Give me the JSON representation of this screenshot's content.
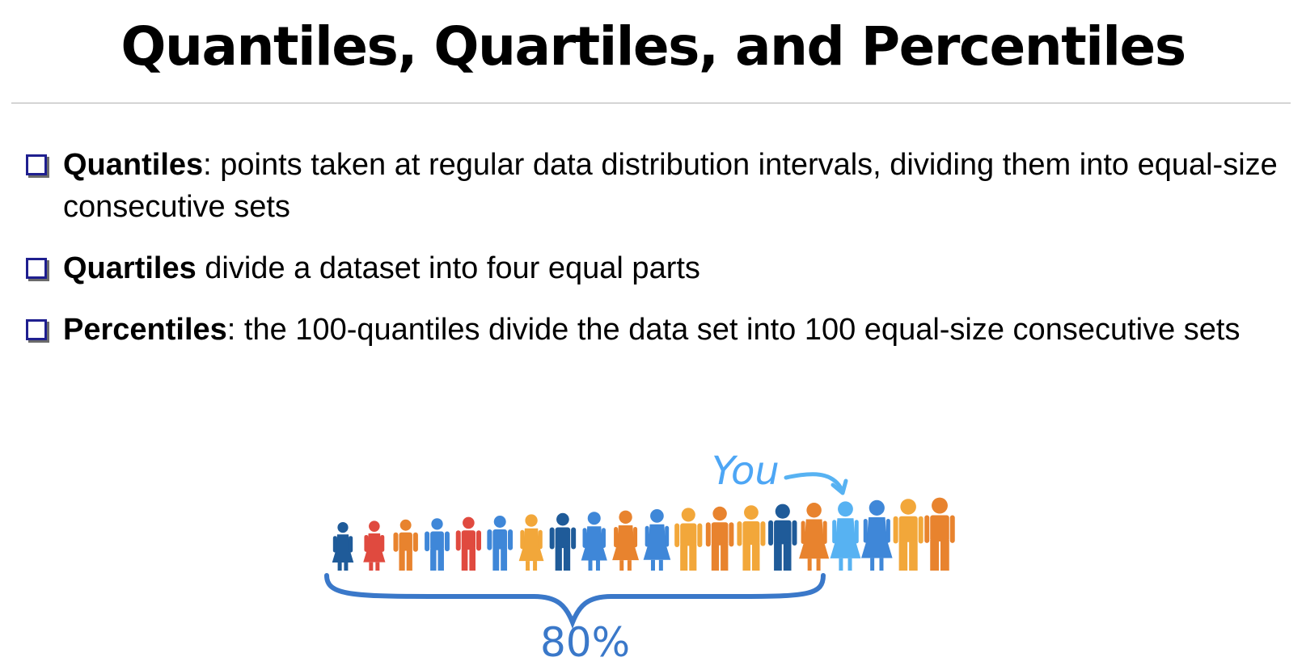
{
  "slide": {
    "title": "Quantiles, Quartiles, and Percentiles"
  },
  "bullets": [
    {
      "term": "Quantiles",
      "text": ": points taken at regular data distribution intervals, dividing them into equal-size consecutive sets"
    },
    {
      "term": "Quartiles",
      "text": " divide a dataset into four equal parts"
    },
    {
      "term": "Percentiles",
      "text": ": the 100-quantiles divide the data set into 100 equal-size consecutive sets"
    }
  ],
  "illustration": {
    "you_label": "You",
    "percent_label": "80%",
    "colors": {
      "dark_blue": "#1f5b99",
      "red": "#e04a3f",
      "orange": "#e8832e",
      "light_orange": "#f2a73a",
      "blue": "#3f87d8",
      "light_blue": "#57b2f2",
      "brace": "#3a78c9"
    },
    "people": [
      {
        "kind": "female",
        "color": "dark_blue"
      },
      {
        "kind": "female",
        "color": "red"
      },
      {
        "kind": "male",
        "color": "orange"
      },
      {
        "kind": "male",
        "color": "blue"
      },
      {
        "kind": "male",
        "color": "red"
      },
      {
        "kind": "male",
        "color": "blue"
      },
      {
        "kind": "female",
        "color": "light_orange"
      },
      {
        "kind": "male",
        "color": "dark_blue"
      },
      {
        "kind": "female",
        "color": "blue"
      },
      {
        "kind": "female",
        "color": "orange"
      },
      {
        "kind": "female",
        "color": "blue"
      },
      {
        "kind": "male",
        "color": "light_orange"
      },
      {
        "kind": "male",
        "color": "orange"
      },
      {
        "kind": "male",
        "color": "light_orange"
      },
      {
        "kind": "male",
        "color": "dark_blue"
      },
      {
        "kind": "female",
        "color": "orange"
      },
      {
        "kind": "female",
        "color": "light_blue",
        "is_you": true
      },
      {
        "kind": "female",
        "color": "blue"
      },
      {
        "kind": "male",
        "color": "light_orange"
      },
      {
        "kind": "male",
        "color": "orange"
      }
    ]
  }
}
